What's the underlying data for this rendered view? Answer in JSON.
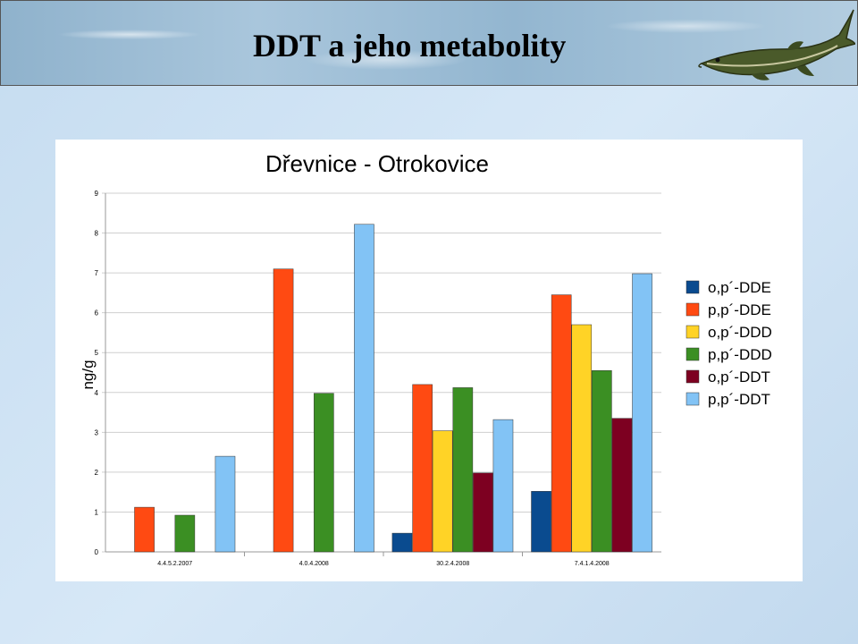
{
  "slide": {
    "title": "DDT a jeho metabolity"
  },
  "chart_data": {
    "type": "bar",
    "title": "Dřevnice - Otrokovice",
    "ylabel": "ng/g",
    "xlabel": "",
    "ylim": [
      0,
      9
    ],
    "yticks": [
      "0",
      "1",
      "2",
      "3",
      "4",
      "5",
      "6",
      "7",
      "8",
      "9"
    ],
    "grid": true,
    "legend_position": "right",
    "categories": [
      "4.4.5.2.2007",
      "4.0.4.2008",
      "30.2.4.2008",
      "7.4.1.4.2008"
    ],
    "series": [
      {
        "name": "o,p´-DDE",
        "color": "#0a4b8f",
        "values": [
          0,
          0,
          0.47,
          1.52
        ]
      },
      {
        "name": "p,p´-DDE",
        "color": "#ff4a12",
        "values": [
          1.12,
          7.1,
          4.2,
          6.45
        ]
      },
      {
        "name": "o,p´-DDD",
        "color": "#ffd326",
        "values": [
          0,
          0,
          3.04,
          5.7
        ]
      },
      {
        "name": "p,p´-DDD",
        "color": "#3b8f23",
        "values": [
          0.92,
          3.98,
          4.12,
          4.55
        ]
      },
      {
        "name": "o,p´-DDT",
        "color": "#7d0021",
        "values": [
          0,
          0,
          1.98,
          3.35
        ]
      },
      {
        "name": "p,p´-DDT",
        "color": "#82c3f5",
        "values": [
          2.4,
          8.22,
          3.32,
          6.98
        ]
      }
    ]
  }
}
